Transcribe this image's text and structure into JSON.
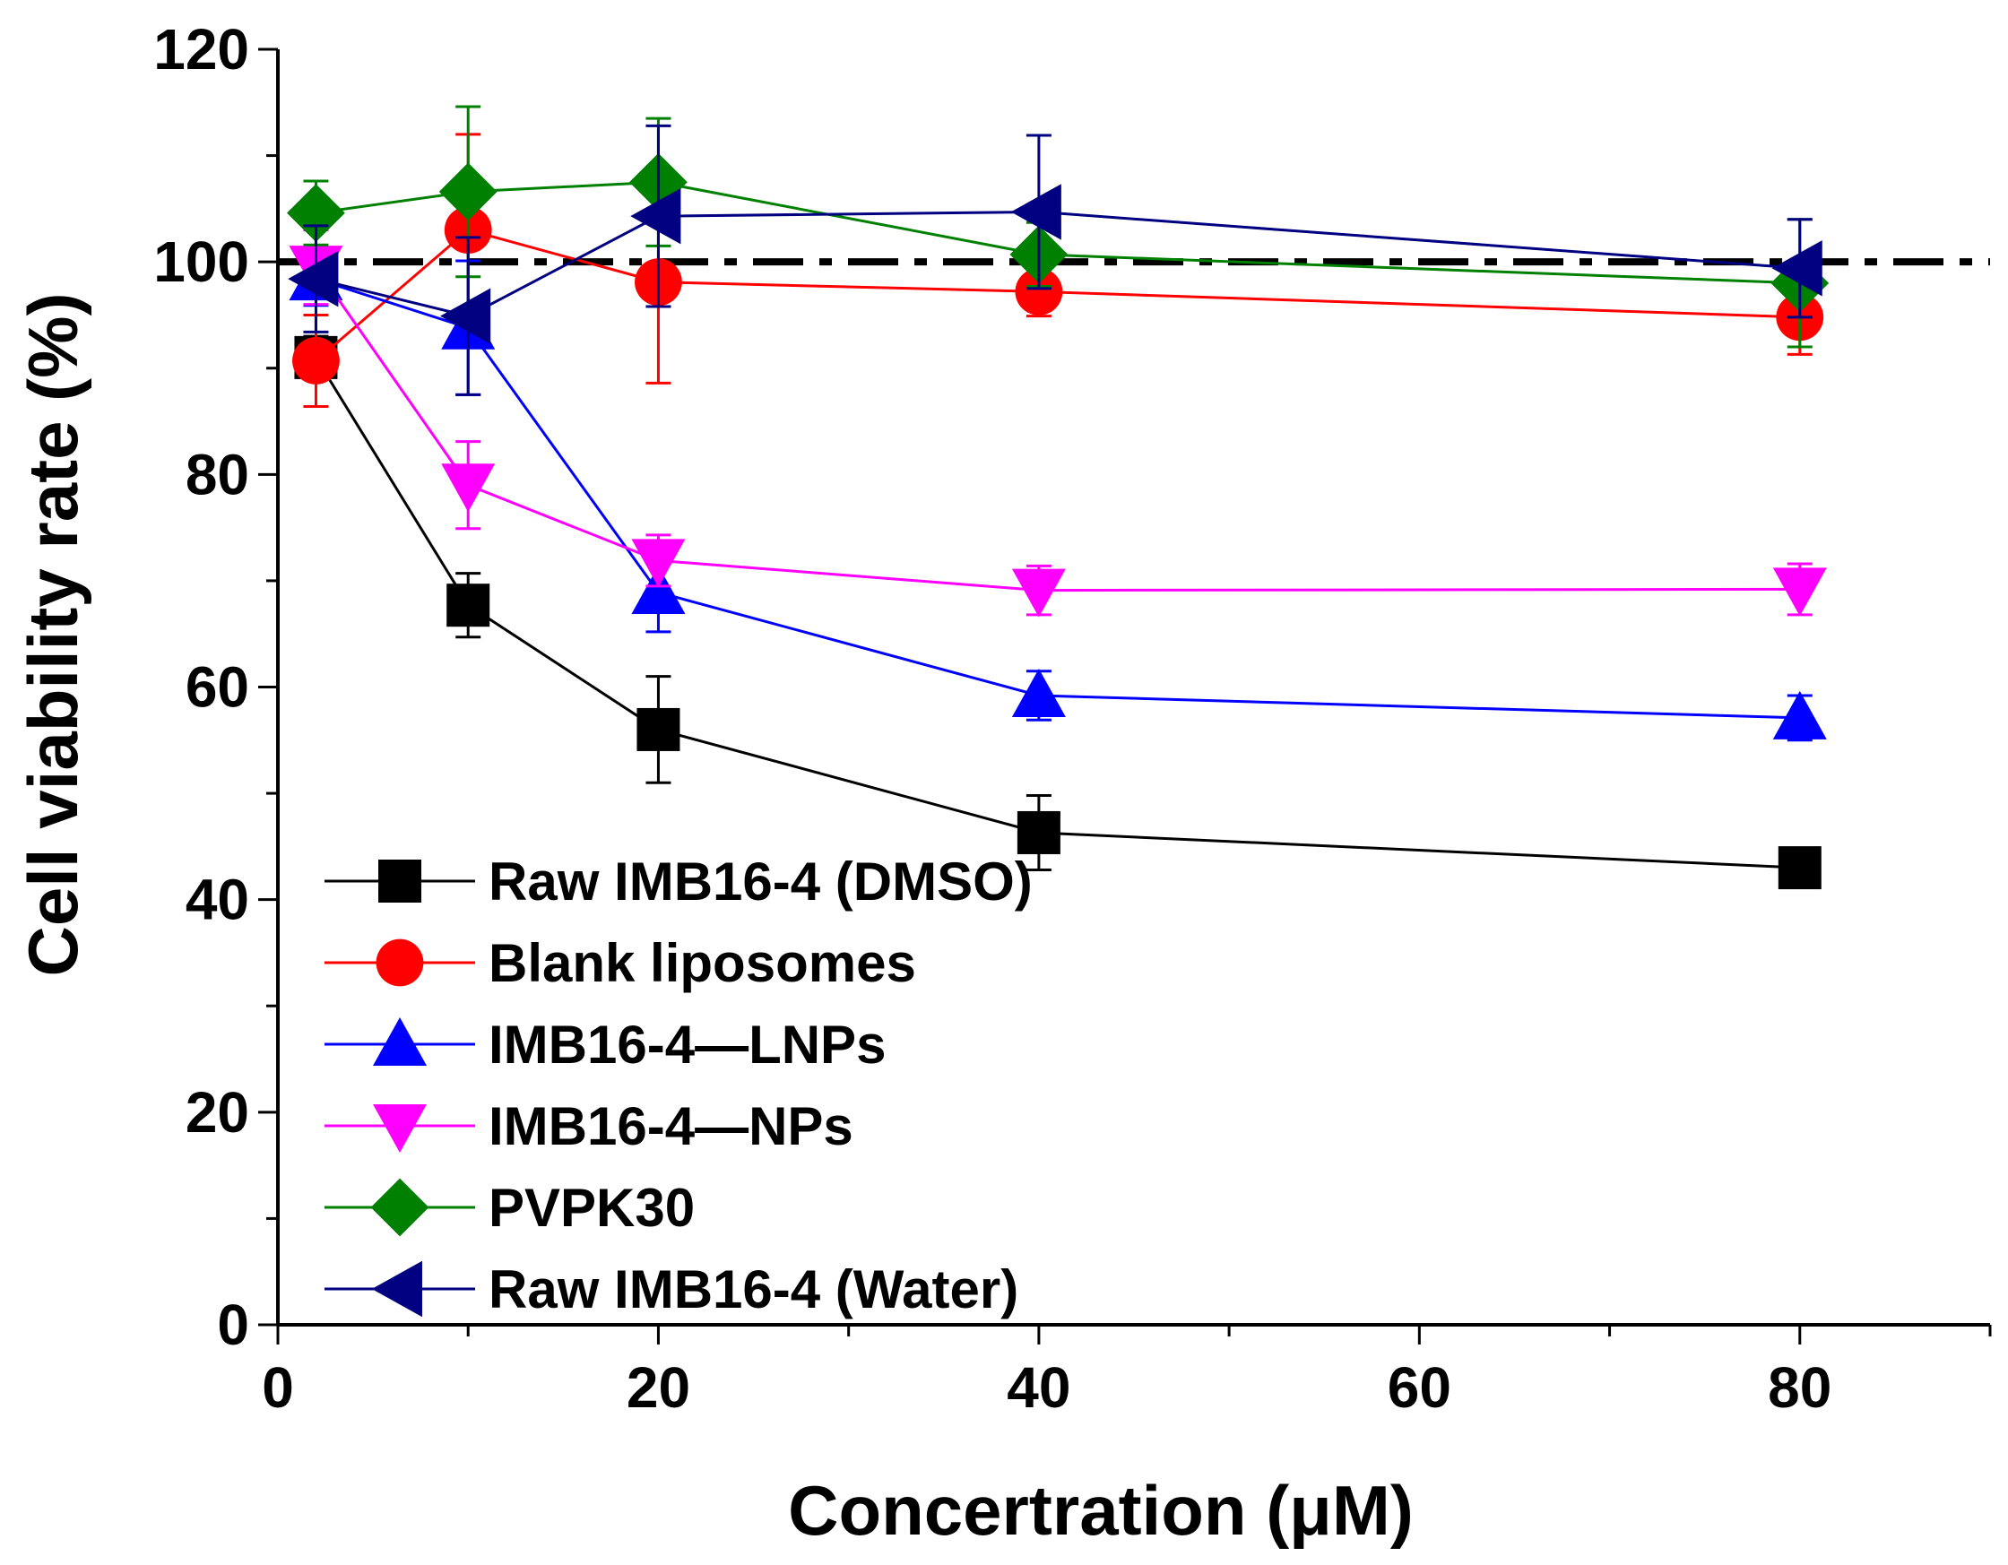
{
  "chart_data": {
    "type": "line",
    "title": "",
    "xlabel": "Concertration (μM)",
    "ylabel": "Cell viability rate (%)",
    "xlim": [
      0,
      90
    ],
    "ylim": [
      0,
      120
    ],
    "xticks": [
      0,
      20,
      40,
      60,
      80
    ],
    "yticks": [
      0,
      20,
      40,
      60,
      80,
      100,
      120
    ],
    "grid": false,
    "legend_position": "lower-left",
    "reference_line": {
      "y": 100,
      "style": "dash-dot",
      "color": "#000000"
    },
    "x": [
      2,
      10,
      20,
      40,
      80
    ],
    "series": [
      {
        "name": "Raw IMB16-4 (DMSO)",
        "color": "#000000",
        "marker": "square",
        "values": [
          91,
          67.7,
          56,
          46.3,
          43
        ],
        "errors": [
          2,
          3,
          5,
          3.5,
          1
        ]
      },
      {
        "name": "Blank liposomes",
        "color": "#ff0000",
        "marker": "circle",
        "values": [
          90.7,
          103,
          98.1,
          97.2,
          94.8
        ],
        "errors": [
          4.3,
          9,
          9.5,
          2.3,
          3.5
        ]
      },
      {
        "name": "IMB16-4—LNPs",
        "color": "#0000ff",
        "marker": "triangle-up",
        "values": [
          98.4,
          93.8,
          68.9,
          59.2,
          57.1
        ],
        "errors": [
          2.5,
          6.3,
          3.7,
          2.3,
          2.1
        ]
      },
      {
        "name": "IMB16-4—NPs",
        "color": "#ff00ff",
        "marker": "triangle-down",
        "values": [
          99.5,
          79,
          71.9,
          69.1,
          69.2
        ],
        "errors": [
          3.5,
          4.1,
          2.4,
          2.3,
          2.4
        ]
      },
      {
        "name": "PVPK30",
        "color": "#008000",
        "marker": "diamond",
        "values": [
          104.6,
          106.6,
          107.5,
          100.7,
          98
        ],
        "errors": [
          3,
          8,
          6,
          3,
          6
        ]
      },
      {
        "name": "Raw IMB16-4 (Water)",
        "color": "#000080",
        "marker": "triangle-left",
        "values": [
          98.4,
          94.9,
          104.3,
          104.7,
          99.4
        ],
        "errors": [
          5,
          7.4,
          8.5,
          7.2,
          4.6
        ]
      }
    ]
  }
}
